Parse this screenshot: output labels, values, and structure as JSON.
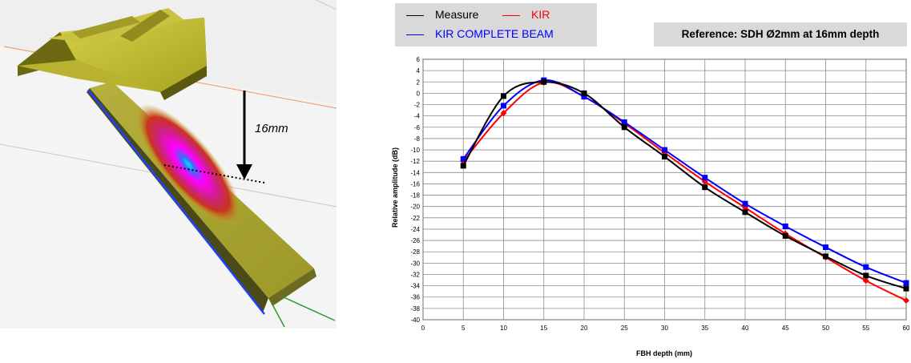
{
  "scene": {
    "depth_label": "16mm"
  },
  "legend": [
    {
      "name": "Measure",
      "color": "#000000",
      "text_color": "#000000"
    },
    {
      "name": "KIR",
      "color": "#ff0000",
      "text_color": "#ff0000"
    },
    {
      "name": "KIR COMPLETE BEAM",
      "color": "#0000ff",
      "text_color": "#0000ff"
    }
  ],
  "reference": "Reference: SDH Ø2mm at 16mm depth",
  "chart_data": {
    "type": "line",
    "xlabel": "FBH depth (mm)",
    "ylabel": "Relative amplitude (dB)",
    "xlim": [
      0,
      60
    ],
    "ylim": [
      -40,
      6
    ],
    "x_ticks": [
      0,
      5,
      10,
      15,
      20,
      25,
      30,
      35,
      40,
      45,
      50,
      55,
      60
    ],
    "y_ticks": [
      6,
      4,
      2,
      0,
      -2,
      -4,
      -6,
      -8,
      -10,
      -12,
      -14,
      -16,
      -18,
      -20,
      -22,
      -24,
      -26,
      -28,
      -30,
      -32,
      -34,
      -36,
      -38,
      -40
    ],
    "grid": true,
    "series": [
      {
        "name": "Measure",
        "color": "#000000",
        "marker": "square",
        "x": [
          5,
          10,
          15,
          20,
          25,
          30,
          35,
          40,
          45,
          50,
          55,
          60
        ],
        "y": [
          -12.8,
          -0.5,
          2.0,
          0.0,
          -6.0,
          -11.2,
          -16.6,
          -21.0,
          -25.2,
          -28.8,
          -32.2,
          -34.5
        ]
      },
      {
        "name": "KIR",
        "color": "#ff0000",
        "marker": "diamond",
        "x": [
          5,
          10,
          15,
          20,
          25,
          30,
          35,
          40,
          45,
          50,
          55,
          60
        ],
        "y": [
          -12.0,
          -3.5,
          1.9,
          -0.6,
          -5.3,
          -10.5,
          -15.6,
          -20.2,
          -24.8,
          -29.0,
          -33.1,
          -36.6
        ]
      },
      {
        "name": "KIR COMPLETE BEAM",
        "color": "#0000ff",
        "marker": "square",
        "x": [
          5,
          10,
          15,
          20,
          25,
          30,
          35,
          40,
          45,
          50,
          55,
          60
        ],
        "y": [
          -11.6,
          -2.2,
          2.3,
          -0.6,
          -5.1,
          -10.0,
          -14.9,
          -19.5,
          -23.5,
          -27.2,
          -30.7,
          -33.5
        ]
      }
    ]
  }
}
